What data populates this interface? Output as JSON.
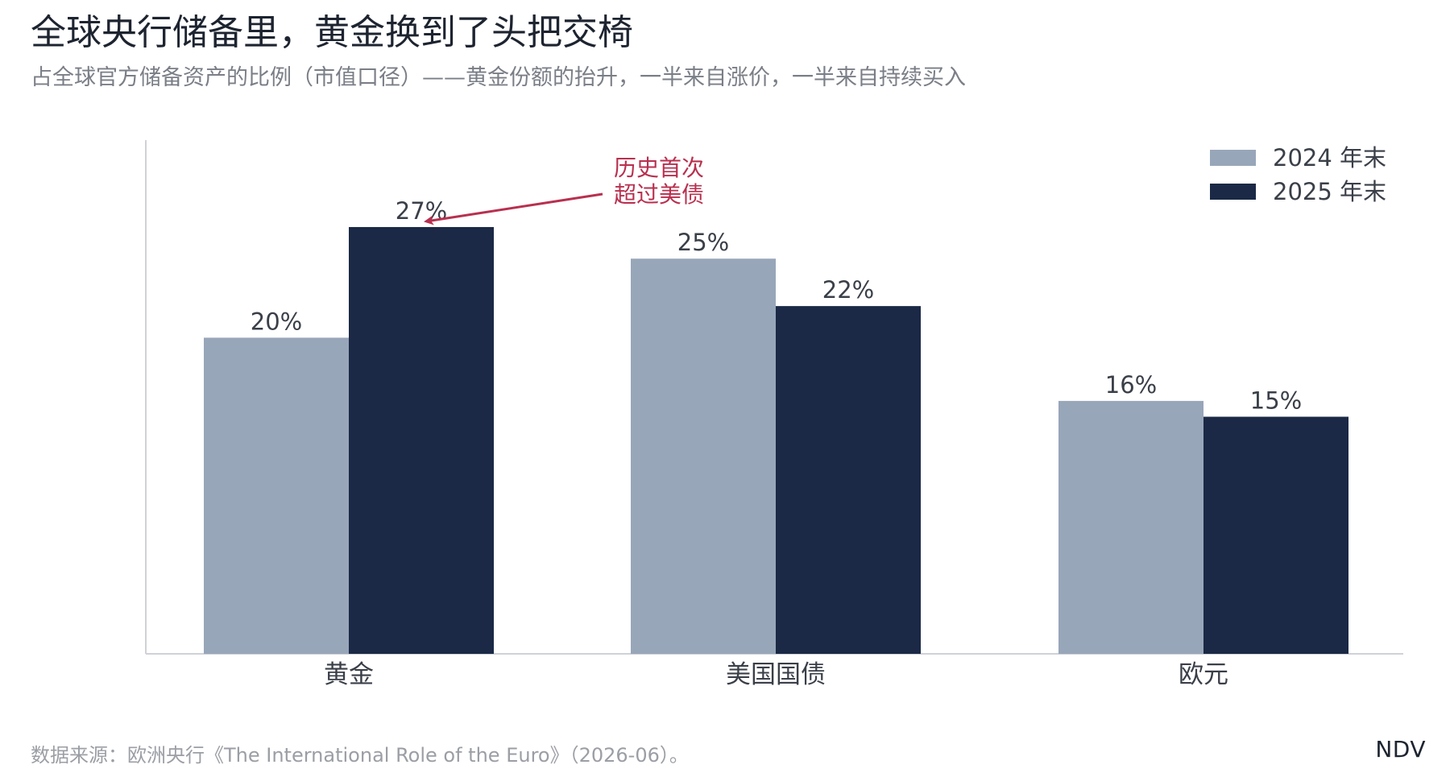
{
  "header": {
    "title": "全球央行储备里，黄金换到了头把交椅",
    "subtitle": "占全球官方储备资产的比例（市值口径）——黄金份额的抬升，一半来自涨价，一半来自持续买入"
  },
  "footer": {
    "source": "数据来源：欧洲央行《The International Role of the Euro》（2026-06）。",
    "brand": "NDV"
  },
  "colors": {
    "series_2024": "#98a6b9",
    "series_2025": "#1b2946",
    "annotation": "#b8304f",
    "axis": "#cfd2d7",
    "value_label": "#3a3f48",
    "category_label": "#3a3f48"
  },
  "chart_data": {
    "type": "bar",
    "categories": [
      "黄金",
      "美国国债",
      "欧元"
    ],
    "series": [
      {
        "name": "2024 年末",
        "values": [
          20,
          25,
          16
        ],
        "value_labels": [
          "20%",
          "25%",
          "16%"
        ]
      },
      {
        "name": "2025 年末",
        "values": [
          27,
          22,
          15
        ],
        "value_labels": [
          "27%",
          "22%",
          "15%"
        ]
      }
    ],
    "ylim": [
      0,
      32.5
    ],
    "grid": false,
    "legend_position": "top-right",
    "annotation": {
      "lines": [
        "历史首次",
        "超过美债"
      ],
      "target_category": "黄金",
      "target_series": "2025 年末"
    }
  }
}
